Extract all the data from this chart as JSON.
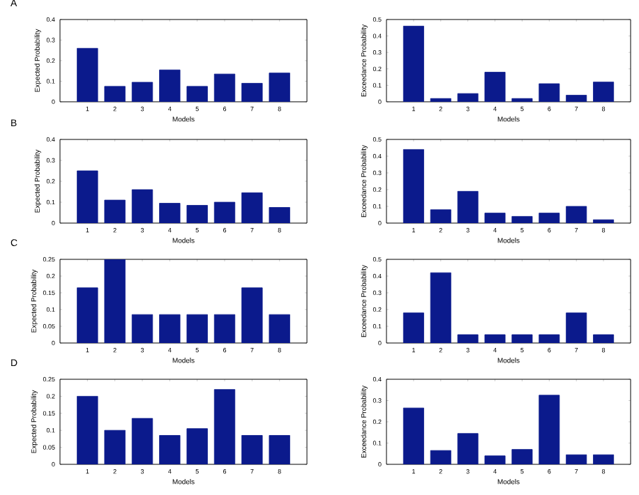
{
  "chart_data": [
    {
      "type": "bar",
      "title": "A",
      "xlabel": "Models",
      "ylabel": "Expected Probability",
      "categories": [
        "1",
        "2",
        "3",
        "4",
        "5",
        "6",
        "7",
        "8"
      ],
      "color": "#0b1a8c",
      "values": [
        0.26,
        0.075,
        0.095,
        0.155,
        0.075,
        0.135,
        0.09,
        0.14
      ],
      "ylim": [
        0,
        0.4
      ],
      "yticks": [
        0,
        0.1,
        0.2,
        0.3,
        0.4
      ]
    },
    {
      "type": "bar",
      "xlabel": "Models",
      "ylabel": "Exceedance Probability",
      "categories": [
        "1",
        "2",
        "3",
        "4",
        "5",
        "6",
        "7",
        "8"
      ],
      "color": "#0b1a8c",
      "values": [
        0.46,
        0.02,
        0.05,
        0.18,
        0.02,
        0.11,
        0.04,
        0.12
      ],
      "ylim": [
        0,
        0.5
      ],
      "yticks": [
        0,
        0.1,
        0.2,
        0.3,
        0.4,
        0.5
      ]
    },
    {
      "type": "bar",
      "title": "B",
      "xlabel": "Models",
      "ylabel": "Expected Probability",
      "categories": [
        "1",
        "2",
        "3",
        "4",
        "5",
        "6",
        "7",
        "8"
      ],
      "color": "#0b1a8c",
      "values": [
        0.25,
        0.11,
        0.16,
        0.095,
        0.085,
        0.1,
        0.145,
        0.075
      ],
      "ylim": [
        0,
        0.4
      ],
      "yticks": [
        0,
        0.1,
        0.2,
        0.3,
        0.4
      ]
    },
    {
      "type": "bar",
      "xlabel": "Models",
      "ylabel": "Exceedance Probability",
      "categories": [
        "1",
        "2",
        "3",
        "4",
        "5",
        "6",
        "7",
        "8"
      ],
      "color": "#0b1a8c",
      "values": [
        0.44,
        0.08,
        0.19,
        0.06,
        0.04,
        0.06,
        0.1,
        0.02
      ],
      "ylim": [
        0,
        0.5
      ],
      "yticks": [
        0,
        0.1,
        0.2,
        0.3,
        0.4,
        0.5
      ]
    },
    {
      "type": "bar",
      "title": "C",
      "xlabel": "Models",
      "ylabel": "Expected Probability",
      "categories": [
        "1",
        "2",
        "3",
        "4",
        "5",
        "6",
        "7",
        "8"
      ],
      "color": "#0b1a8c",
      "values": [
        0.165,
        0.25,
        0.085,
        0.085,
        0.085,
        0.085,
        0.165,
        0.085
      ],
      "ylim": [
        0,
        0.25
      ],
      "yticks": [
        0,
        0.05,
        0.1,
        0.15,
        0.2,
        0.25
      ]
    },
    {
      "type": "bar",
      "xlabel": "Models",
      "ylabel": "Exceedance Probability",
      "categories": [
        "1",
        "2",
        "3",
        "4",
        "5",
        "6",
        "7",
        "8"
      ],
      "color": "#0b1a8c",
      "values": [
        0.18,
        0.42,
        0.05,
        0.05,
        0.05,
        0.05,
        0.18,
        0.05
      ],
      "ylim": [
        0,
        0.5
      ],
      "yticks": [
        0,
        0.1,
        0.2,
        0.3,
        0.4,
        0.5
      ]
    },
    {
      "type": "bar",
      "title": "D",
      "xlabel": "Models",
      "ylabel": "Expected Probability",
      "categories": [
        "1",
        "2",
        "3",
        "4",
        "5",
        "6",
        "7",
        "8"
      ],
      "color": "#0b1a8c",
      "values": [
        0.2,
        0.1,
        0.135,
        0.085,
        0.105,
        0.22,
        0.085,
        0.085
      ],
      "ylim": [
        0,
        0.25
      ],
      "yticks": [
        0,
        0.05,
        0.1,
        0.15,
        0.2,
        0.25
      ]
    },
    {
      "type": "bar",
      "xlabel": "Models",
      "ylabel": "Exceedance Probability",
      "categories": [
        "1",
        "2",
        "3",
        "4",
        "5",
        "6",
        "7",
        "8"
      ],
      "color": "#0b1a8c",
      "values": [
        0.265,
        0.065,
        0.145,
        0.04,
        0.07,
        0.325,
        0.045,
        0.045
      ],
      "ylim": [
        0,
        0.4
      ],
      "yticks": [
        0,
        0.1,
        0.2,
        0.3,
        0.4
      ]
    }
  ]
}
